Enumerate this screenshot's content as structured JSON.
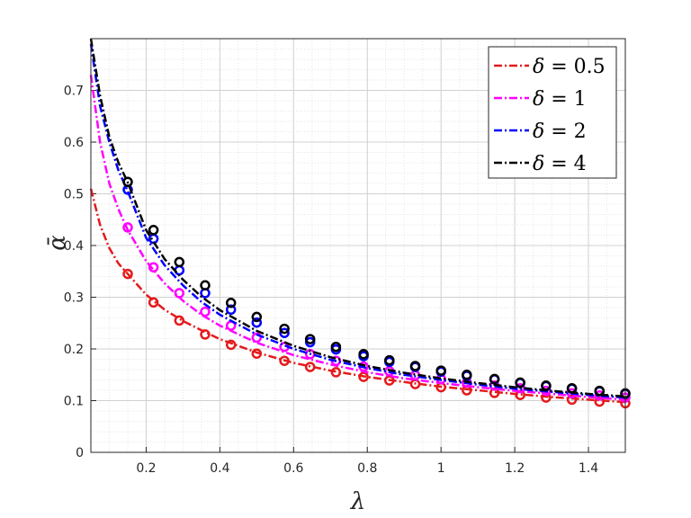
{
  "chart_data": {
    "type": "line",
    "title": "",
    "xlabel": "λ",
    "ylabel": "ᾱ",
    "xlim": [
      0.05,
      1.5
    ],
    "ylim": [
      0,
      0.8
    ],
    "xticks": [
      0.2,
      0.4,
      0.6,
      0.8,
      1,
      1.2,
      1.4
    ],
    "xtick_labels": [
      "0.2",
      "0.4",
      "0.6",
      "0.8",
      "1",
      "1.2",
      "1.4"
    ],
    "yticks": [
      0,
      0.1,
      0.2,
      0.3,
      0.4,
      0.5,
      0.6,
      0.7
    ],
    "ytick_labels": [
      "0",
      "0.1",
      "0.2",
      "0.3",
      "0.4",
      "0.5",
      "0.6",
      "0.7"
    ],
    "grid": true,
    "minor_grid": true,
    "legend_position": "top-right",
    "curve_x": [
      0.05,
      0.075,
      0.1,
      0.125,
      0.15,
      0.2,
      0.25,
      0.3,
      0.35,
      0.4,
      0.5,
      0.6,
      0.7,
      0.8,
      0.9,
      1.0,
      1.1,
      1.2,
      1.3,
      1.4,
      1.5
    ],
    "marker_x": [
      0.15,
      0.22,
      0.29,
      0.36,
      0.43,
      0.5,
      0.575,
      0.645,
      0.715,
      0.79,
      0.86,
      0.93,
      1.0,
      1.07,
      1.145,
      1.215,
      1.285,
      1.355,
      1.43,
      1.5
    ],
    "series": [
      {
        "name": "δ = 0.5",
        "label_symbol": "δ",
        "label_value": "= 0.5",
        "color": "#e41a1c",
        "curve_y": [
          0.51,
          0.44,
          0.395,
          0.365,
          0.345,
          0.305,
          0.276,
          0.254,
          0.236,
          0.219,
          0.193,
          0.173,
          0.158,
          0.146,
          0.136,
          0.127,
          0.12,
          0.113,
          0.107,
          0.102,
          0.097
        ],
        "marker_y": [
          0.345,
          0.29,
          0.255,
          0.228,
          0.208,
          0.191,
          0.177,
          0.165,
          0.155,
          0.146,
          0.139,
          0.132,
          0.126,
          0.12,
          0.115,
          0.111,
          0.106,
          0.102,
          0.098,
          0.095
        ]
      },
      {
        "name": "δ = 1",
        "label_symbol": "δ",
        "label_value": "= 1",
        "color": "#ff00ff",
        "curve_y": [
          0.73,
          0.6,
          0.52,
          0.47,
          0.43,
          0.37,
          0.327,
          0.293,
          0.266,
          0.245,
          0.212,
          0.188,
          0.17,
          0.155,
          0.143,
          0.134,
          0.126,
          0.119,
          0.113,
          0.107,
          0.102
        ],
        "marker_y": [
          0.435,
          0.358,
          0.308,
          0.272,
          0.245,
          0.222,
          0.204,
          0.19,
          0.177,
          0.166,
          0.157,
          0.149,
          0.142,
          0.135,
          0.129,
          0.124,
          0.119,
          0.114,
          0.11,
          0.106
        ]
      },
      {
        "name": "δ = 2",
        "label_symbol": "δ",
        "label_value": "= 2",
        "color": "#0000ff",
        "curve_y": [
          0.79,
          0.67,
          0.6,
          0.545,
          0.505,
          0.415,
          0.362,
          0.323,
          0.291,
          0.266,
          0.228,
          0.2,
          0.179,
          0.163,
          0.15,
          0.14,
          0.131,
          0.123,
          0.117,
          0.111,
          0.106
        ],
        "marker_y": [
          0.508,
          0.413,
          0.352,
          0.308,
          0.276,
          0.251,
          0.231,
          0.213,
          0.199,
          0.186,
          0.175,
          0.165,
          0.156,
          0.148,
          0.141,
          0.134,
          0.128,
          0.123,
          0.118,
          0.113
        ]
      },
      {
        "name": "δ = 4",
        "label_symbol": "δ",
        "label_value": "= 4",
        "color": "#000000",
        "curve_y": [
          0.8,
          0.69,
          0.61,
          0.56,
          0.522,
          0.43,
          0.374,
          0.334,
          0.301,
          0.275,
          0.235,
          0.206,
          0.184,
          0.167,
          0.154,
          0.143,
          0.134,
          0.126,
          0.119,
          0.113,
          0.108
        ],
        "marker_y": [
          0.523,
          0.43,
          0.368,
          0.323,
          0.289,
          0.262,
          0.239,
          0.219,
          0.204,
          0.19,
          0.178,
          0.167,
          0.158,
          0.15,
          0.142,
          0.135,
          0.129,
          0.124,
          0.119,
          0.114
        ]
      }
    ]
  }
}
